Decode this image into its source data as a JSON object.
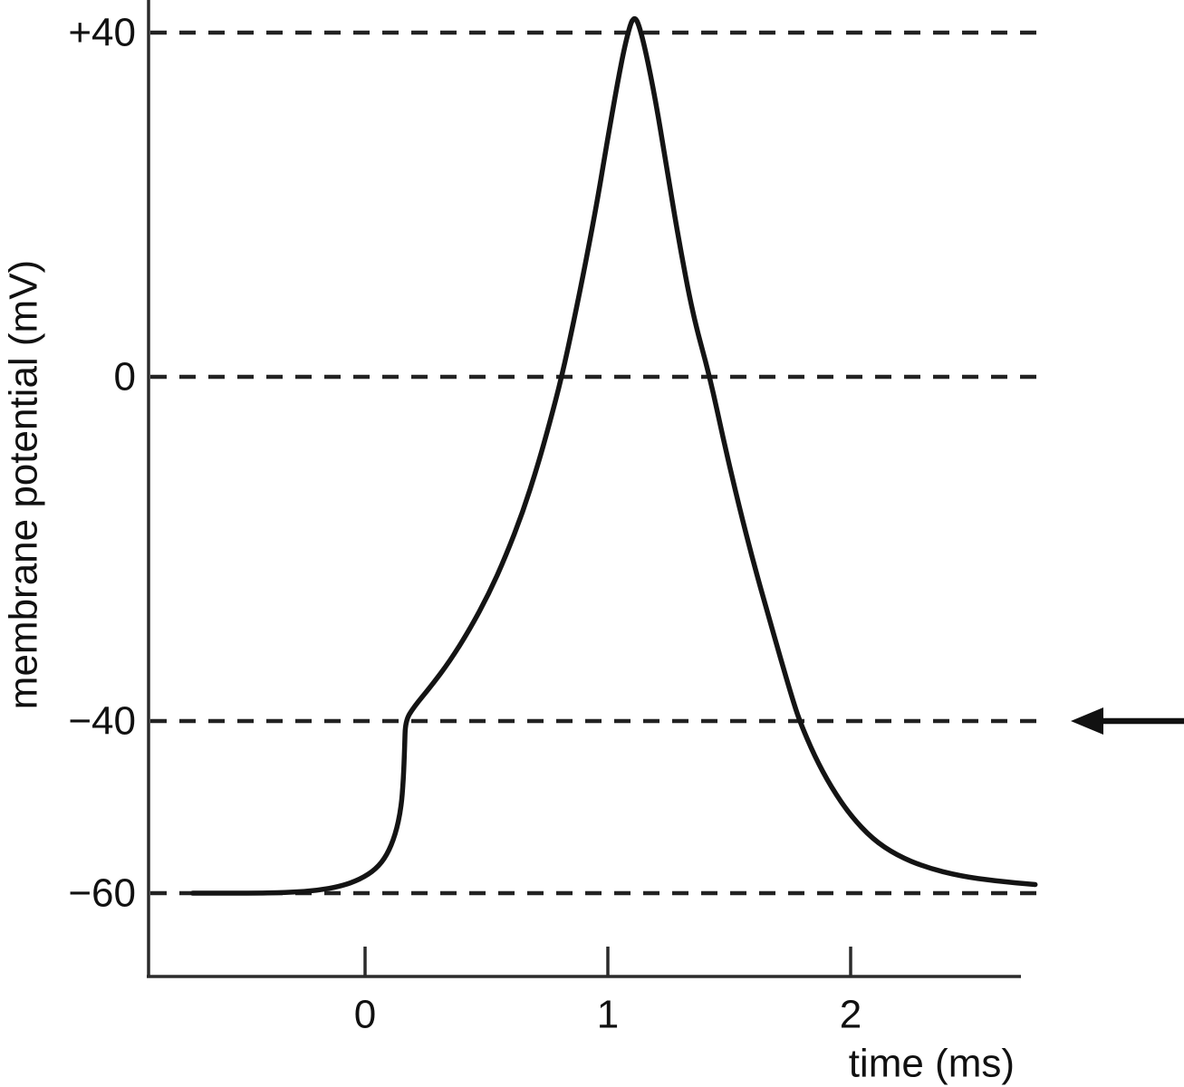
{
  "chart_data": {
    "type": "line",
    "title": "",
    "xlabel": "time (ms)",
    "ylabel": "membrane potential (mV)",
    "x_ticks": [
      0,
      1,
      2
    ],
    "x_tick_labels": [
      "0",
      "1",
      "2"
    ],
    "y_ticks": [
      40,
      0,
      -40,
      -60
    ],
    "y_tick_labels": [
      "+40",
      "0",
      "−40",
      "−60"
    ],
    "xlim": [
      -0.9,
      2.8
    ],
    "ylim": [
      -70,
      44
    ],
    "grid": "horizontal dashed lines at each y tick",
    "legend": "none",
    "series": [
      {
        "name": "membrane potential trace (action potential)",
        "color": "#141414",
        "points": [
          [
            -0.71,
            -60
          ],
          [
            -0.55,
            -60
          ],
          [
            -0.42,
            -60
          ],
          [
            -0.3,
            -59.9
          ],
          [
            -0.2,
            -59.7
          ],
          [
            -0.1,
            -59.2
          ],
          [
            -0.02,
            -58.4
          ],
          [
            0.045,
            -57.2
          ],
          [
            0.09,
            -55.6
          ],
          [
            0.125,
            -53.2
          ],
          [
            0.148,
            -50.2
          ],
          [
            0.158,
            -46.8
          ],
          [
            0.163,
            -43.0
          ],
          [
            0.166,
            -40.0
          ],
          [
            0.2,
            -38.4
          ],
          [
            0.27,
            -36.0
          ],
          [
            0.35,
            -33.0
          ],
          [
            0.43,
            -29.4
          ],
          [
            0.51,
            -25.2
          ],
          [
            0.58,
            -20.8
          ],
          [
            0.65,
            -15.7
          ],
          [
            0.71,
            -10.4
          ],
          [
            0.76,
            -5.4
          ],
          [
            0.81,
            0.0
          ],
          [
            0.86,
            6.5
          ],
          [
            0.91,
            13.5
          ],
          [
            0.96,
            21.0
          ],
          [
            1.0,
            27.8
          ],
          [
            1.04,
            34.2
          ],
          [
            1.075,
            39.2
          ],
          [
            1.108,
            42.3
          ],
          [
            1.14,
            39.9
          ],
          [
            1.19,
            33.2
          ],
          [
            1.24,
            24.8
          ],
          [
            1.29,
            16.2
          ],
          [
            1.35,
            7.2
          ],
          [
            1.42,
            0.0
          ],
          [
            1.48,
            -7.8
          ],
          [
            1.54,
            -15.0
          ],
          [
            1.6,
            -21.6
          ],
          [
            1.66,
            -27.6
          ],
          [
            1.71,
            -32.6
          ],
          [
            1.76,
            -37.4
          ],
          [
            1.79,
            -40.0
          ],
          [
            1.85,
            -44.0
          ],
          [
            1.92,
            -47.7
          ],
          [
            2.0,
            -51.0
          ],
          [
            2.09,
            -53.7
          ],
          [
            2.19,
            -55.6
          ],
          [
            2.31,
            -57.0
          ],
          [
            2.45,
            -58.0
          ],
          [
            2.6,
            -58.6
          ],
          [
            2.76,
            -59.0
          ]
        ],
        "key_values": {
          "resting_potential_mV": -60,
          "threshold_mV": -40,
          "peak_mV": 42,
          "peak_time_ms": 1.1
        }
      }
    ],
    "annotations": [
      {
        "type": "arrow",
        "direction": "left",
        "at_mV": -40,
        "meaning": "points at the −40 mV dashed threshold line",
        "label": ""
      }
    ]
  }
}
